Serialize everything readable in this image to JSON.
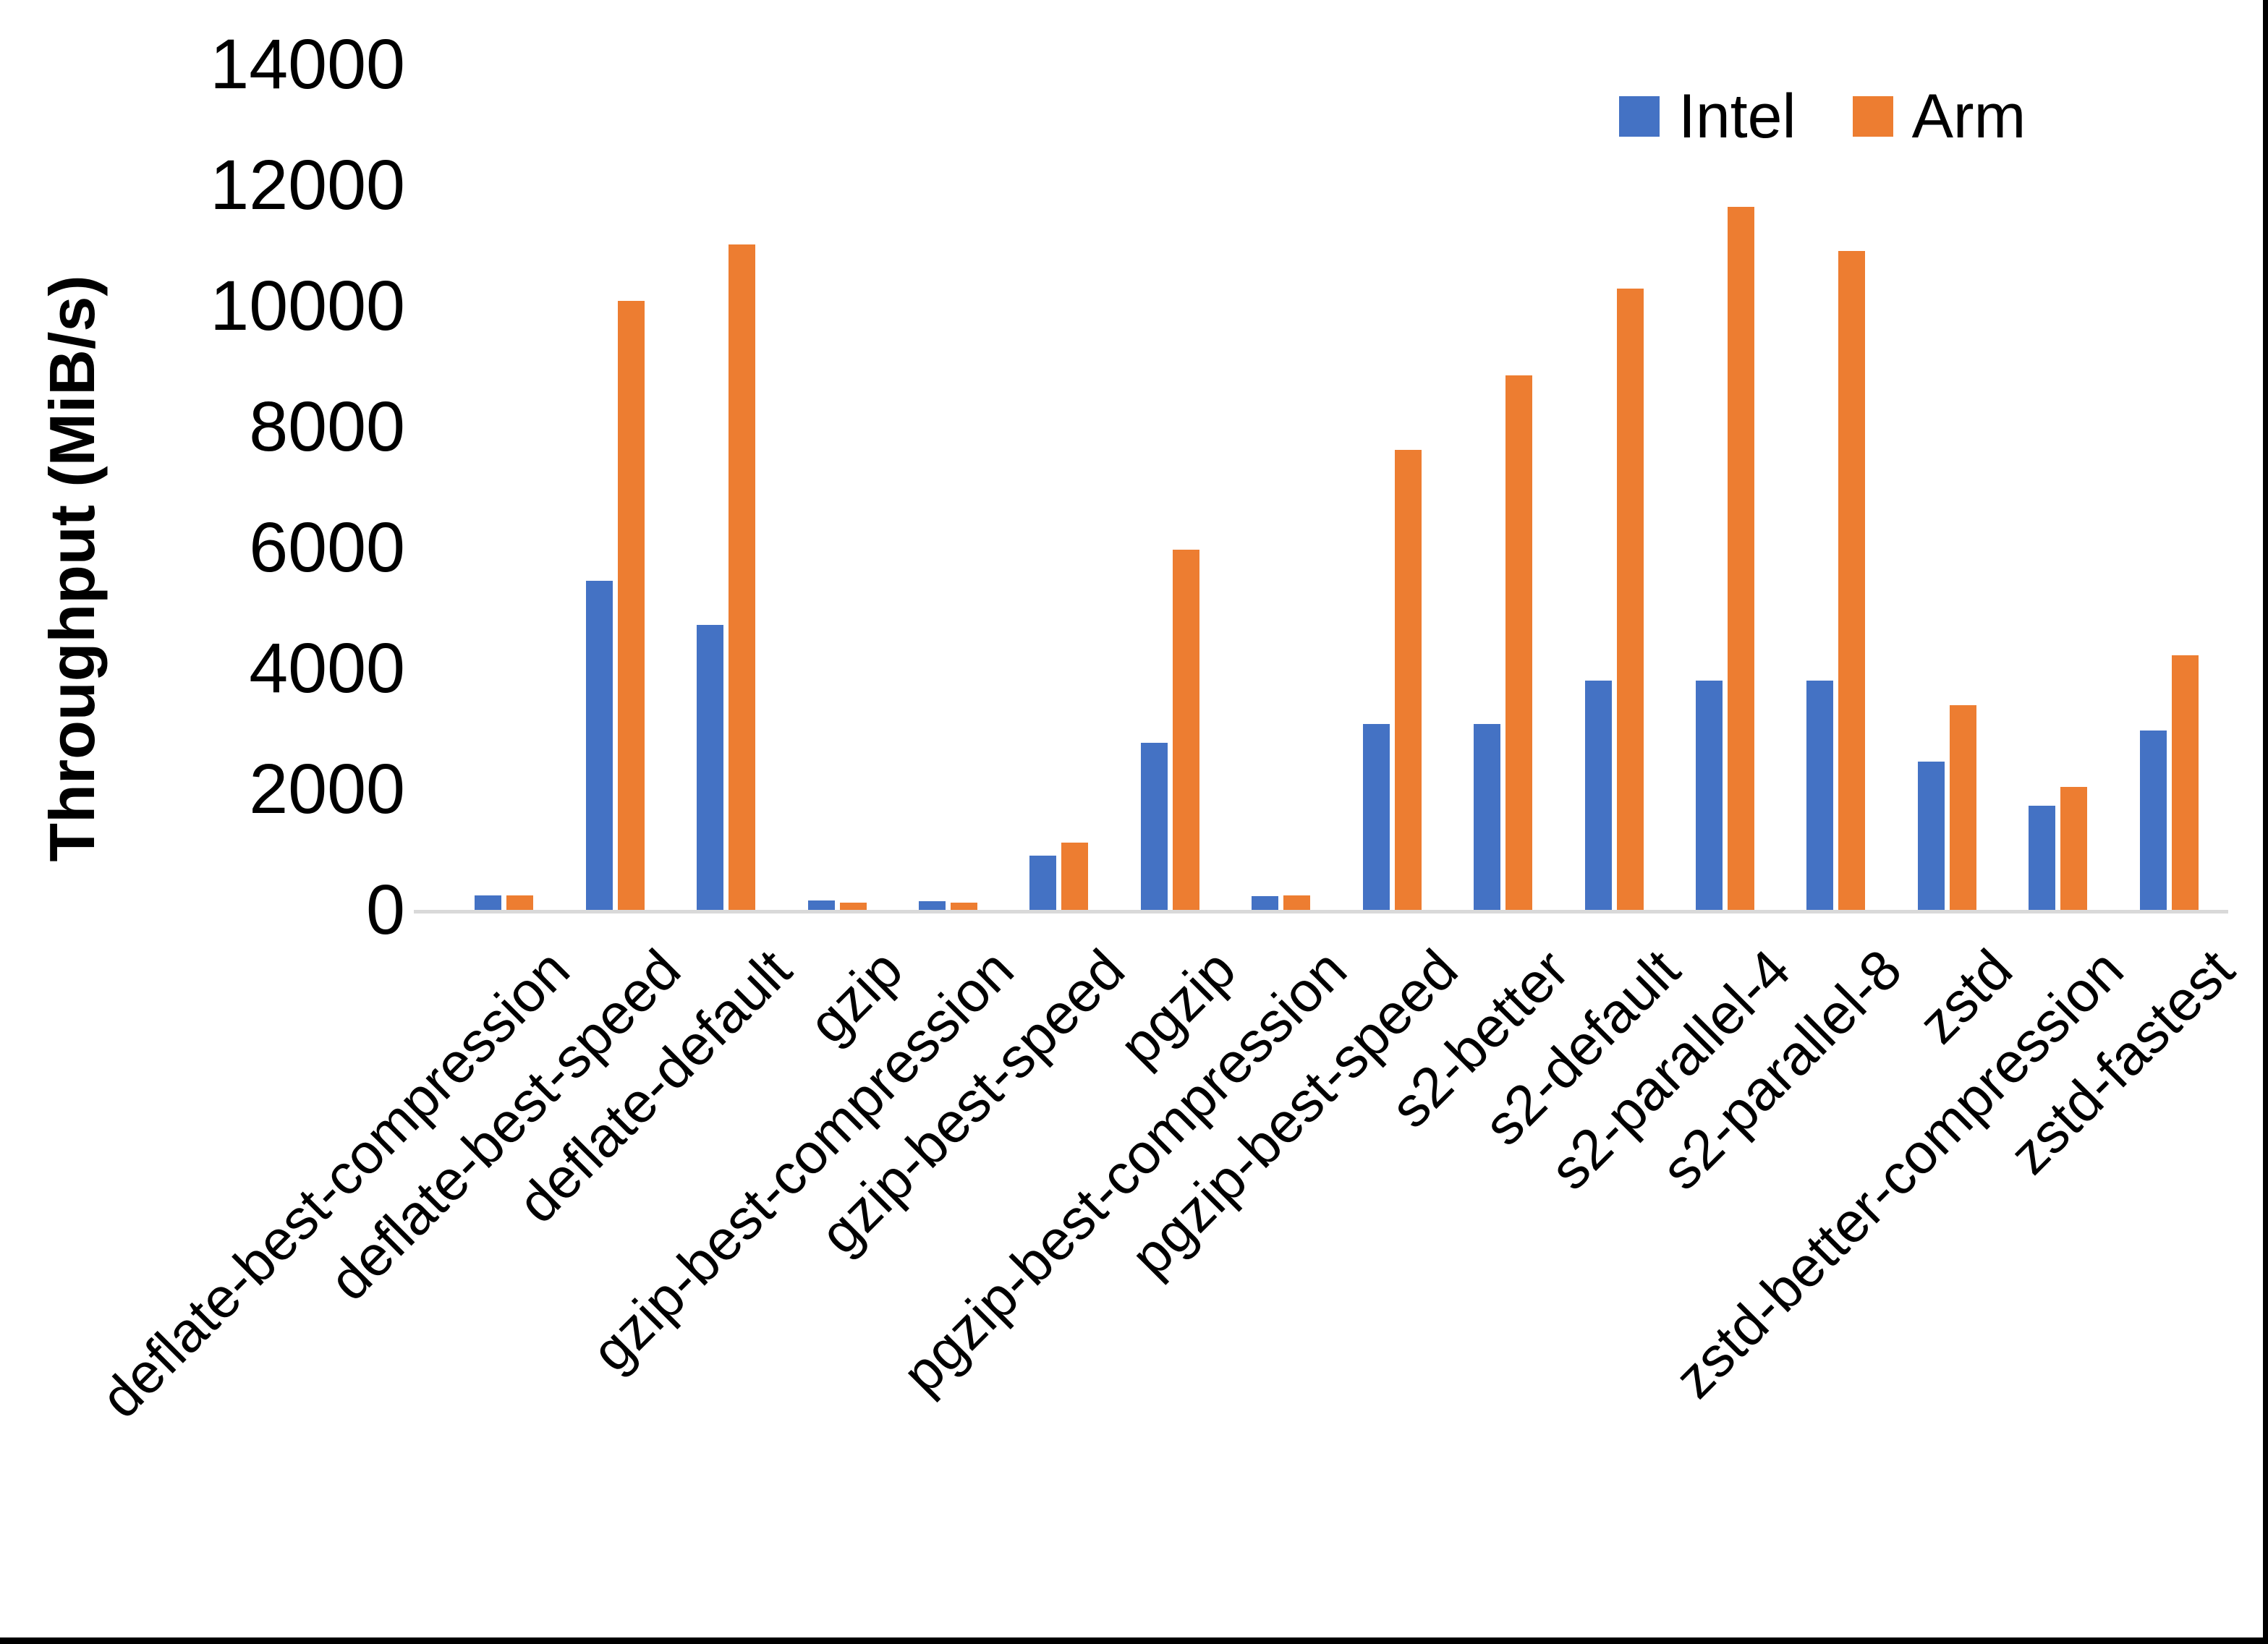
{
  "chart_data": {
    "type": "bar",
    "title": "",
    "ylabel": "Throughput (MiB/s)",
    "xlabel": "",
    "ylim": [
      0,
      14000
    ],
    "yticks": [
      0,
      2000,
      4000,
      6000,
      8000,
      10000,
      12000,
      14000
    ],
    "grid": false,
    "legend_position": "top-right",
    "categories": [
      "deflate-best-compression",
      "deflate-best-speed",
      "deflate-default",
      "gzip",
      "gzip-best-compression",
      "gzip-best-speed",
      "pgzip",
      "pgzip-best-compression",
      "pgzip-best-speed",
      "s2-better",
      "s2-default",
      "s2-parallel-4",
      "s2-parallel-8",
      "zstd",
      "zstd-better-compression",
      "zstd-fastest"
    ],
    "series": [
      {
        "name": "Intel",
        "color": "#4472C4",
        "values": [
          245,
          5450,
          4720,
          150,
          140,
          900,
          2770,
          230,
          3080,
          3080,
          3800,
          3800,
          3800,
          2450,
          1730,
          2970
        ]
      },
      {
        "name": "Arm",
        "color": "#ED7D31",
        "values": [
          240,
          10080,
          11020,
          115,
          115,
          1110,
          5960,
          245,
          7620,
          8850,
          10290,
          11640,
          10910,
          3390,
          2040,
          4210
        ]
      }
    ],
    "axis_line_color": "#D9D9D9",
    "frame_color": "#000000"
  }
}
